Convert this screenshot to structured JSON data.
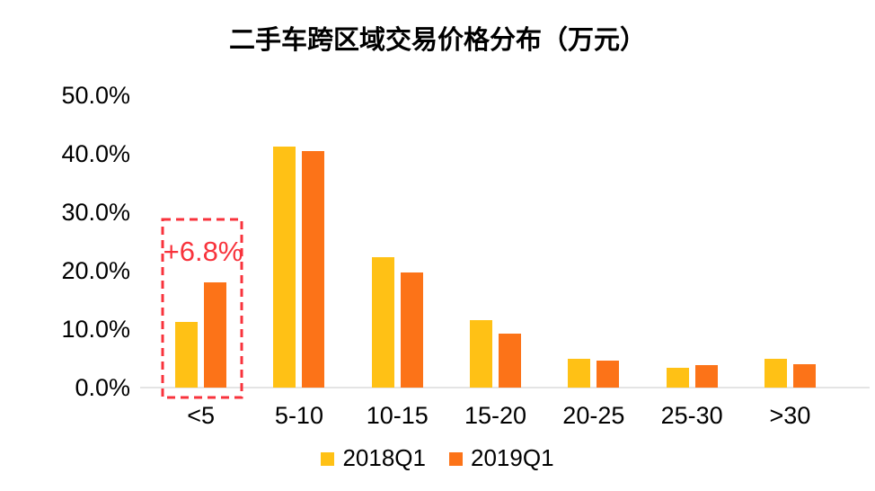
{
  "chart_data": {
    "type": "bar",
    "title": "二手车跨区域交易价格分布（万元）",
    "xlabel": "",
    "ylabel": "",
    "categories": [
      "<5",
      "5-10",
      "10-15",
      "15-20",
      "20-25",
      "25-30",
      ">30"
    ],
    "series": [
      {
        "name": "2018Q1",
        "color": "#FFC115",
        "values": [
          11.2,
          41.3,
          22.3,
          11.6,
          4.9,
          3.4,
          5.0
        ]
      },
      {
        "name": "2019Q1",
        "color": "#FC7318",
        "values": [
          18.0,
          40.5,
          19.7,
          9.2,
          4.6,
          3.9,
          4.0
        ]
      }
    ],
    "ylim": [
      0,
      50
    ],
    "ytick_step": 10,
    "ytick_labels": [
      "0.0%",
      "10.0%",
      "20.0%",
      "30.0%",
      "40.0%",
      "50.0%"
    ],
    "grid": false,
    "legend_position": "bottom",
    "axis_line_color": "#E4E4E4",
    "annotations": [
      {
        "text": "+6.8%",
        "category": "<5",
        "color": "#F8333C",
        "style": "dashed-box-highlight"
      }
    ]
  }
}
